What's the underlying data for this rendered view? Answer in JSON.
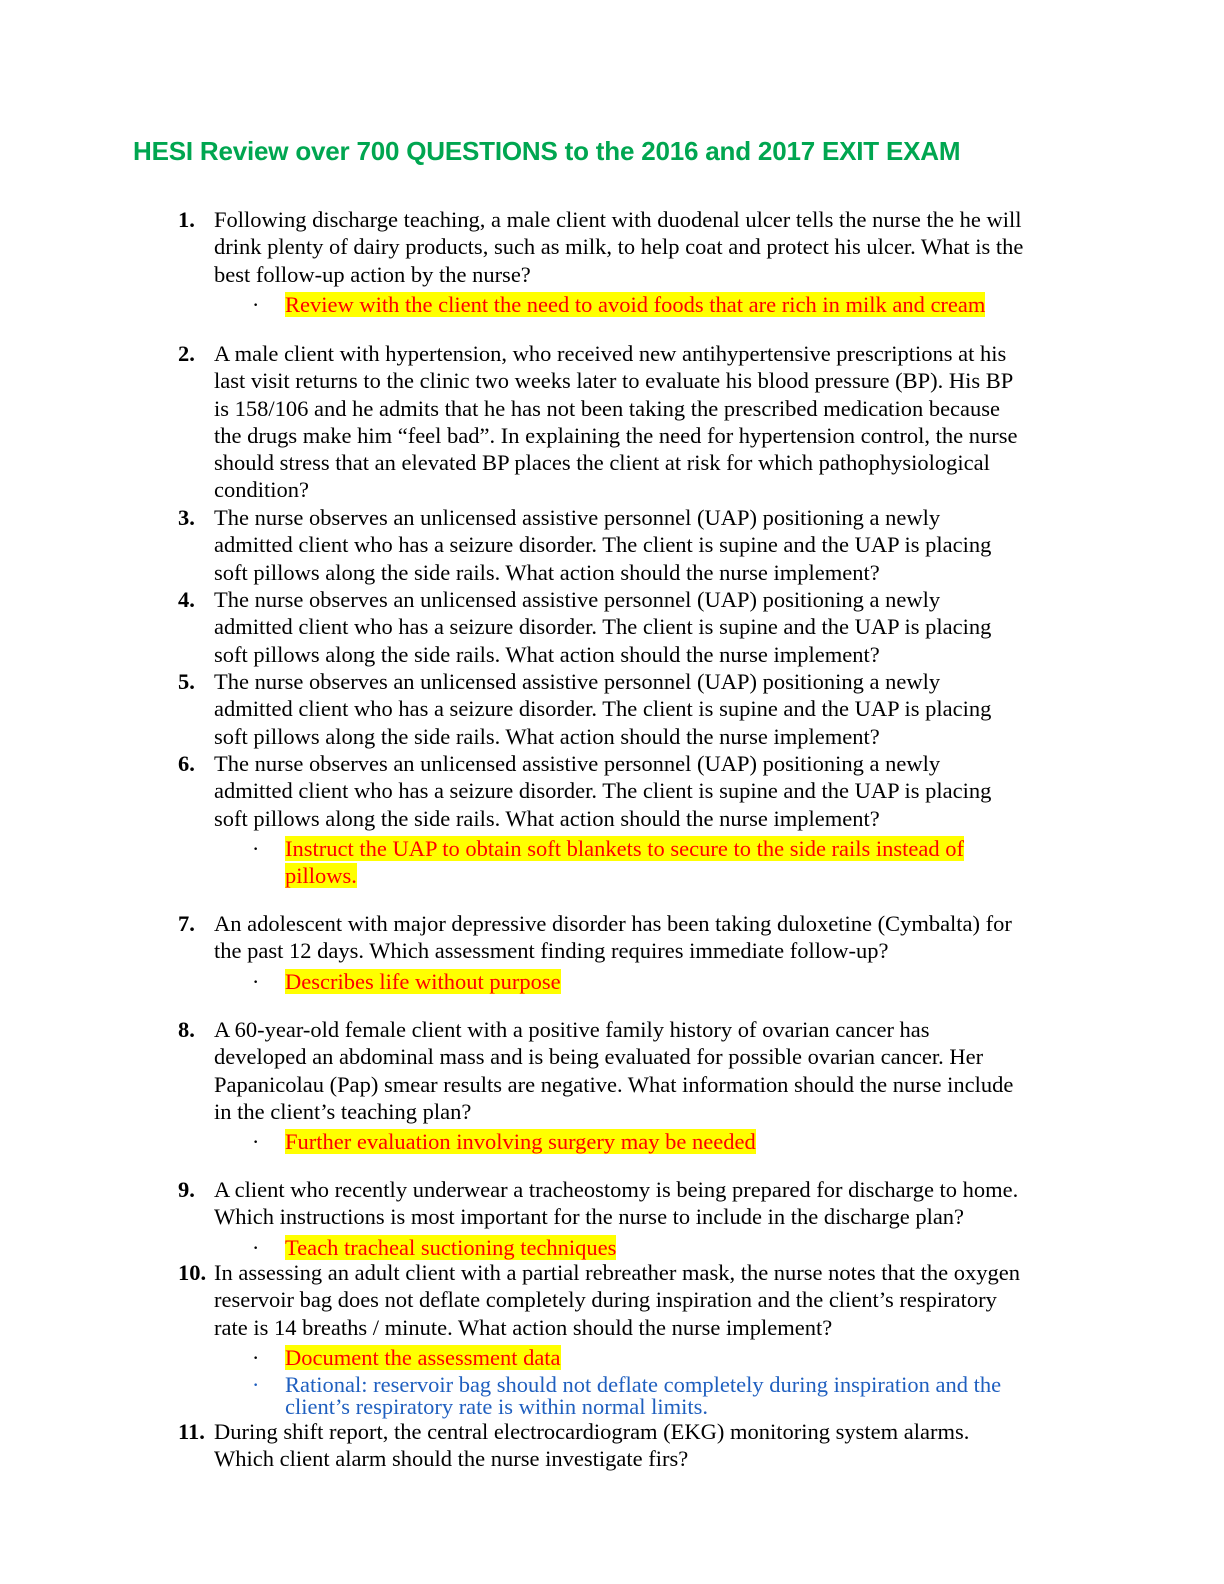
{
  "title": "HESI Review over 700 QUESTIONS to the 2016 and 2017 EXIT EXAM",
  "colors": {
    "title": "#00a650",
    "highlight": "#ffff00",
    "answer_text": "#ff0000",
    "rationale_text": "#1f5fbf"
  },
  "questions": [
    {
      "number": "1.",
      "lines": [
        "Following discharge teaching, a male client with duodenal ulcer tells the nurse the he will",
        "drink plenty of dairy products, such as milk, to help coat and protect his ulcer. What is the",
        "best follow-up action by the nurse?"
      ],
      "answers": [
        {
          "type": "answer",
          "lines": [
            "Review with the client the need to avoid foods that are rich in milk and cream"
          ]
        }
      ]
    },
    {
      "number": "2.",
      "lines": [
        "A male client with hypertension, who received new antihypertensive prescriptions at his",
        "last visit returns to the clinic two weeks later to evaluate his blood pressure (BP). His BP",
        "is 158/106 and he admits that he has not been taking the prescribed medication because",
        "the drugs make him “feel bad”. In explaining the need for hypertension control, the nurse",
        "should stress that an elevated BP places the client at risk for which pathophysiological",
        "condition?"
      ],
      "answers": []
    },
    {
      "number": "3.",
      "lines": [
        "The nurse observes an unlicensed assistive personnel (UAP) positioning a newly",
        "admitted client who has a seizure disorder. The client is supine and the UAP is placing",
        "soft pillows along the side rails. What action should the nurse implement?"
      ],
      "answers": []
    },
    {
      "number": "4.",
      "lines": [
        "The nurse observes an unlicensed assistive personnel (UAP) positioning a newly",
        "admitted client who has a seizure disorder. The client is supine and the UAP is placing",
        "soft pillows along the side rails. What action should the nurse implement?"
      ],
      "answers": []
    },
    {
      "number": "5.",
      "lines": [
        "The nurse observes an unlicensed assistive personnel (UAP) positioning a newly",
        "admitted client who has a seizure disorder. The client is supine and the UAP is placing",
        "soft pillows along the side rails. What action should the nurse implement?"
      ],
      "answers": []
    },
    {
      "number": "6.",
      "lines": [
        "The nurse observes an unlicensed assistive personnel (UAP) positioning a newly",
        "admitted client who has a seizure disorder. The client is supine and the UAP is placing",
        "soft pillows along the side rails. What action should the nurse implement?"
      ],
      "answers": [
        {
          "type": "answer",
          "lines": [
            "Instruct the UAP to obtain soft blankets to secure to the side rails instead of",
            "pillows."
          ]
        }
      ]
    },
    {
      "number": "7.",
      "lines": [
        "An adolescent with major depressive disorder has been taking duloxetine (Cymbalta) for",
        "the past 12 days. Which assessment finding requires immediate follow-up?"
      ],
      "answers": [
        {
          "type": "answer",
          "lines": [
            "Describes life without purpose"
          ]
        }
      ]
    },
    {
      "number": "8.",
      "lines": [
        "A 60-year-old female client with a positive family history of ovarian cancer has",
        "developed an abdominal mass and is being evaluated for possible ovarian cancer. Her",
        "Papanicolau (Pap) smear results are negative. What information should the nurse include",
        "in the client’s teaching plan?"
      ],
      "answers": [
        {
          "type": "answer",
          "lines": [
            "Further evaluation involving surgery may be needed"
          ]
        }
      ]
    },
    {
      "number": "9.",
      "lines": [
        "A client who recently underwear a tracheostomy is being prepared for discharge to home.",
        "Which instructions is most important for the nurse to include in the discharge plan?"
      ],
      "answers": [
        {
          "type": "answer",
          "lines": [
            "Teach tracheal suctioning techniques"
          ]
        }
      ]
    },
    {
      "number": "10.",
      "lines": [
        "In assessing an adult client with a partial rebreather mask, the nurse notes that the oxygen",
        "reservoir bag does not deflate completely during inspiration and the client’s respiratory",
        "rate is 14 breaths / minute. What action should the nurse implement?"
      ],
      "answers": [
        {
          "type": "answer",
          "lines": [
            "Document the assessment data"
          ]
        },
        {
          "type": "rationale",
          "lines": [
            "Rational: reservoir bag should not deflate completely during inspiration and the",
            "client’s respiratory rate is within normal limits."
          ]
        }
      ]
    },
    {
      "number": "11.",
      "lines": [
        "During shift report, the central electrocardiogram (EKG) monitoring system alarms.",
        "Which client alarm should the nurse investigate firs?"
      ],
      "answers": []
    }
  ]
}
